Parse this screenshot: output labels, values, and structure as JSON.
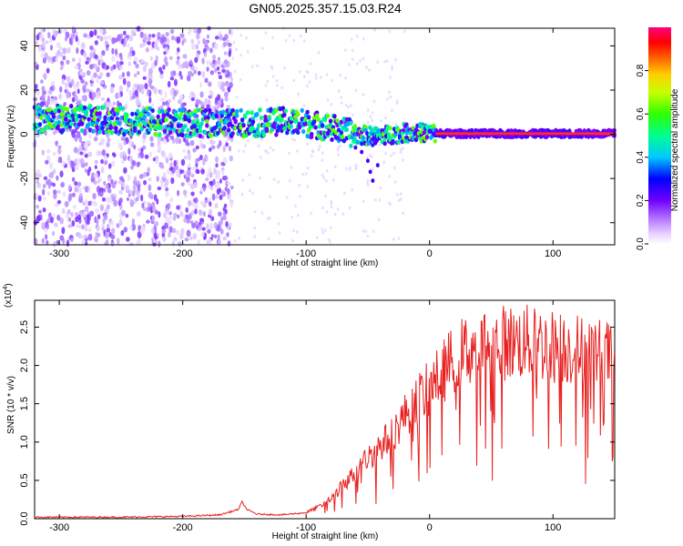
{
  "title": "GN05.2025.357.15.03.R24",
  "colors": {
    "axis": "#000000",
    "snr_line": "#e82020",
    "spectrum_ridge": "#ff2a2a",
    "colormap": [
      "#ffffff",
      "#e0c0ff",
      "#b070ff",
      "#7a00ff",
      "#2020ff",
      "#00c8ff",
      "#00ff80",
      "#40ff00",
      "#c8ff00",
      "#ffc800",
      "#ff6000",
      "#ff0000",
      "#ff0080"
    ]
  },
  "chart_data": [
    {
      "id": "spectrogram",
      "type": "heatmap",
      "title": "GN05.2025.357.15.03.R24",
      "xlabel": "Height of straight line (km)",
      "ylabel": "Frequency (Hz)",
      "xlim": [
        -320,
        150
      ],
      "ylim": [
        -50,
        48
      ],
      "xticks": [
        -300,
        -200,
        -100,
        0,
        100
      ],
      "xtick_labels": [
        "-300",
        "-200",
        "-100",
        "0",
        "100"
      ],
      "yticks": [
        -40,
        -20,
        0,
        20,
        40
      ],
      "ytick_labels": [
        "-40",
        "-20",
        "0",
        "20",
        "40"
      ],
      "ridge_frequency_track": {
        "x": [
          -315,
          -280,
          -250,
          -230,
          -200,
          -170,
          -140,
          -120,
          -100,
          -80,
          -60,
          -45,
          -30,
          -15,
          0,
          20,
          60,
          100,
          145
        ],
        "y": [
          7,
          7,
          6,
          6,
          5,
          5,
          5,
          6,
          5,
          3,
          0,
          -1,
          0,
          1,
          0.5,
          0.3,
          0.3,
          0.3,
          0.3
        ]
      },
      "colorbar": {
        "label": "Normalized spectral amplitude",
        "range": [
          0.0,
          1.0
        ],
        "ticks": [
          0.0,
          0.2,
          0.4,
          0.6,
          0.8
        ],
        "tick_labels": [
          "0.0",
          "0.2",
          "0.4",
          "0.6",
          "0.8"
        ]
      }
    },
    {
      "id": "snr",
      "type": "line",
      "xlabel": "Height of straight line (km)",
      "ylabel": "SNR (10 * v/v)",
      "scale_note": "(x10",
      "scale_exponent": "4",
      "xlim": [
        -320,
        150
      ],
      "ylim": [
        0,
        2.85
      ],
      "xticks": [
        -300,
        -200,
        -100,
        0,
        100
      ],
      "xtick_labels": [
        "-300",
        "-200",
        "-100",
        "0",
        "100"
      ],
      "yticks": [
        0.0,
        0.5,
        1.0,
        1.5,
        2.0,
        2.5
      ],
      "ytick_labels": [
        "0.0",
        "0.5",
        "1.0",
        "1.5",
        "2.0",
        "2.5"
      ],
      "series": [
        {
          "name": "SNR",
          "x": [
            -320,
            -250,
            -200,
            -170,
            -155,
            -152,
            -148,
            -140,
            -120,
            -100,
            -90,
            -80,
            -70,
            -60,
            -50,
            -40,
            -30,
            -20,
            -10,
            0,
            10,
            20,
            30,
            40,
            60,
            80,
            100,
            120,
            140,
            150
          ],
          "y": [
            0.02,
            0.02,
            0.03,
            0.05,
            0.12,
            0.22,
            0.12,
            0.06,
            0.05,
            0.08,
            0.15,
            0.25,
            0.45,
            0.6,
            0.8,
            0.95,
            1.1,
            1.35,
            1.55,
            1.7,
            1.9,
            2.1,
            2.2,
            2.25,
            2.3,
            2.3,
            2.25,
            2.2,
            2.15,
            2.1
          ]
        }
      ]
    }
  ]
}
